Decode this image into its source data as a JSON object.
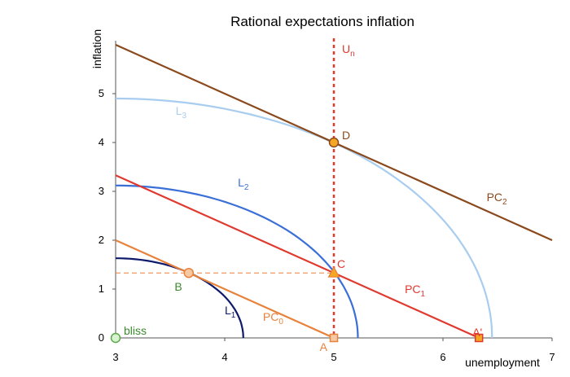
{
  "chart_data": {
    "type": "line",
    "title": "Rational expectations inflation",
    "xlabel": "unemployment",
    "ylabel": "inflation",
    "xlim": [
      3,
      7
    ],
    "ylim": [
      0,
      6
    ],
    "x_ticks": [
      "3",
      "4",
      "5",
      "6",
      "7"
    ],
    "y_ticks": [
      "0",
      "1",
      "2",
      "3",
      "4",
      "5"
    ],
    "grid": false,
    "natural_rate_line": {
      "label": "U",
      "subscript": "n",
      "x": 5,
      "color": "#e03a2f"
    },
    "lines": [
      {
        "label": "PC",
        "subscript": "0",
        "color": "#e8823a",
        "x": [
          3,
          5
        ],
        "y": [
          2,
          0
        ],
        "label_pos": [
          4.35,
          0.35
        ]
      },
      {
        "label": "PC",
        "subscript": "1",
        "color": "#e03a2f",
        "x": [
          3,
          6.33
        ],
        "y": [
          3.33,
          0
        ],
        "label_pos": [
          5.65,
          0.92
        ]
      },
      {
        "label": "PC",
        "subscript": "2",
        "color": "#8b4a1e",
        "x": [
          3,
          7
        ],
        "y": [
          6,
          2
        ],
        "label_pos": [
          6.4,
          2.8
        ]
      }
    ],
    "loss_curves": [
      {
        "label": "L",
        "subscript": "1",
        "color": "#0d1a6b",
        "center": [
          3,
          0
        ],
        "rx": 1.17,
        "ry": 1.63,
        "label_pos": [
          4.0,
          0.48
        ]
      },
      {
        "label": "L",
        "subscript": "2",
        "color": "#3b6fd8",
        "center": [
          3,
          0
        ],
        "rx": 2.22,
        "ry": 3.12,
        "label_pos": [
          4.12,
          3.1
        ]
      },
      {
        "label": "L",
        "subscript": "3",
        "color": "#a8cdef",
        "center": [
          3,
          0
        ],
        "rx": 3.45,
        "ry": 4.9,
        "label_pos": [
          3.55,
          4.57
        ]
      }
    ],
    "points": [
      {
        "label": "bliss",
        "x": 3,
        "y": 0,
        "shape": "circle",
        "fill": "#d9f2d0",
        "stroke": "#5aa84a",
        "label_color": "#3d8b2f"
      },
      {
        "label": "B",
        "x": 3.67,
        "y": 1.33,
        "shape": "circle",
        "fill": "#f6c9a3",
        "stroke": "#e8823a",
        "label_color": "#3d8b2f"
      },
      {
        "label": "A",
        "x": 5,
        "y": 0,
        "shape": "square",
        "fill": "#f6c9a3",
        "stroke": "#e8823a",
        "label_color": "#e8823a"
      },
      {
        "label": "C",
        "x": 5,
        "y": 1.33,
        "shape": "triangle",
        "fill": "#f5a623",
        "stroke": "#e8823a",
        "label_color": "#e03a2f"
      },
      {
        "label": "A'",
        "x": 6.33,
        "y": 0,
        "shape": "square",
        "fill": "#f5a623",
        "stroke": "#e03a2f",
        "label_color": "#e03a2f"
      },
      {
        "label": "D",
        "x": 5,
        "y": 4,
        "shape": "circle",
        "fill": "#f5a623",
        "stroke": "#8b4a1e",
        "label_color": "#8b4a1e"
      }
    ],
    "guide_line": {
      "from": [
        3,
        1.33
      ],
      "to": [
        5,
        1.33
      ],
      "color": "#e8823a",
      "style": "dashed"
    }
  }
}
